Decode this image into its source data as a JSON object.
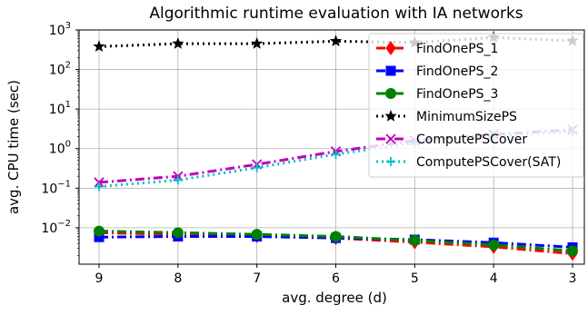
{
  "chart_data": {
    "type": "line",
    "title": "Algorithmic runtime evaluation with IA networks",
    "xlabel": "avg. degree (d)",
    "ylabel": "avg. CPU time (sec)",
    "x": [
      9,
      8,
      7,
      6,
      5,
      4,
      3
    ],
    "x_ticks": [
      "9",
      "8",
      "7",
      "6",
      "5",
      "4",
      "3"
    ],
    "x_reversed": true,
    "y_scale": "log",
    "ylim": [
      0.0012,
      1000
    ],
    "y_ticks": [
      {
        "base": "10",
        "exp": "3",
        "value": 1000
      },
      {
        "base": "10",
        "exp": "2",
        "value": 100
      },
      {
        "base": "10",
        "exp": "1",
        "value": 10
      },
      {
        "base": "10",
        "exp": "0",
        "value": 1
      },
      {
        "base": "10",
        "exp": "−1",
        "value": 0.1
      },
      {
        "base": "10",
        "exp": "−2",
        "value": 0.01
      }
    ],
    "grid": true,
    "legend_position": "upper-right",
    "series": [
      {
        "name": "FindOnePS_1",
        "color": "#ff0000",
        "marker": "diamond",
        "dash": "dashdot",
        "values": [
          0.0075,
          0.0068,
          0.0062,
          0.0055,
          0.0043,
          0.0033,
          0.0022
        ]
      },
      {
        "name": "FindOnePS_2",
        "color": "#0000ff",
        "marker": "square",
        "dash": "dashdot",
        "values": [
          0.0058,
          0.006,
          0.006,
          0.0055,
          0.005,
          0.0042,
          0.0032
        ]
      },
      {
        "name": "FindOnePS_3",
        "color": "#008000",
        "marker": "circle",
        "dash": "dashdot",
        "values": [
          0.0082,
          0.0075,
          0.0068,
          0.006,
          0.0048,
          0.0037,
          0.0026
        ]
      },
      {
        "name": "MinimumSizePS",
        "color": "#000000",
        "marker": "star",
        "dash": "dotted",
        "values": [
          380,
          450,
          450,
          520,
          480,
          650,
          530
        ]
      },
      {
        "name": "ComputePSCover",
        "color": "#bf00bf",
        "marker": "x",
        "dash": "dashdot",
        "values": [
          0.14,
          0.2,
          0.4,
          0.85,
          1.6,
          2.3,
          3.0
        ]
      },
      {
        "name": "ComputePSCover(SAT)",
        "color": "#00bfbf",
        "marker": "plus",
        "dash": "dotted",
        "values": [
          0.11,
          0.16,
          0.33,
          0.72,
          1.4,
          2.1,
          2.7
        ]
      }
    ]
  }
}
